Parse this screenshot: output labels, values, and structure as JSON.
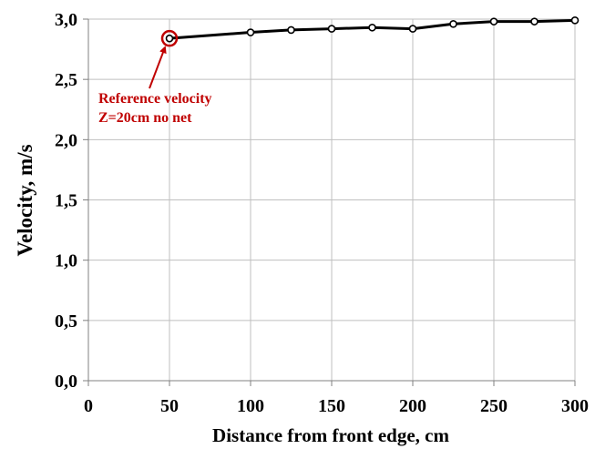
{
  "chart_data": {
    "type": "line",
    "xlabel": "Distance from front edge, cm",
    "ylabel": "Velocity, m/s",
    "xlim": [
      0,
      300
    ],
    "ylim": [
      0,
      3.0
    ],
    "x_ticks": [
      "0",
      "50",
      "100",
      "150",
      "200",
      "250",
      "300"
    ],
    "x_tick_values": [
      0,
      50,
      100,
      150,
      200,
      250,
      300
    ],
    "y_ticks": [
      "0,0",
      "0,5",
      "1,0",
      "1,5",
      "2,0",
      "2,5",
      "3,0"
    ],
    "y_tick_values": [
      0,
      0.5,
      1.0,
      1.5,
      2.0,
      2.5,
      3.0
    ],
    "grid": true,
    "series": [
      {
        "x": [
          50,
          100,
          125,
          150,
          175,
          200,
          225,
          250,
          275,
          300
        ],
        "y": [
          2.84,
          2.89,
          2.91,
          2.92,
          2.93,
          2.92,
          2.96,
          2.98,
          2.98,
          2.99
        ],
        "color": "#000000"
      }
    ],
    "annotation": {
      "lines": [
        "Reference velocity",
        "Z=20cm no net"
      ],
      "color": "#c00000",
      "target_x": 50,
      "target_y": 2.84
    }
  }
}
